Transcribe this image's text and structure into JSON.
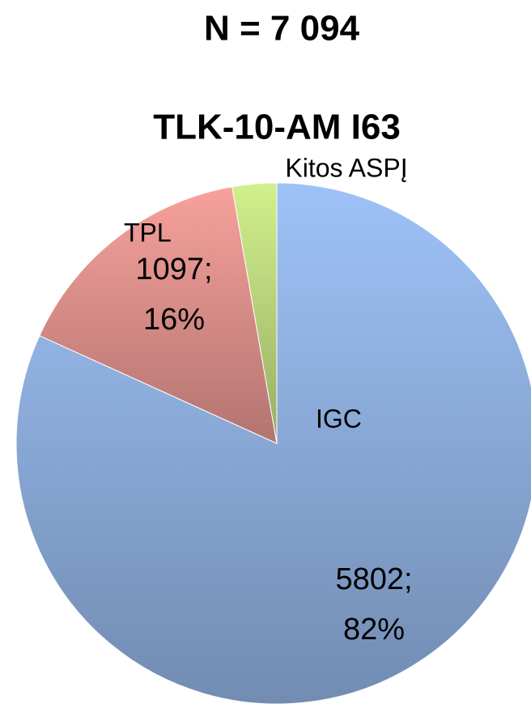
{
  "chart_data": {
    "type": "pie",
    "title": "N = 7 094",
    "subtitle": "TLK-10-AM  I63",
    "categories": [
      "IGC",
      "TPL",
      "Kitos ASPĮ"
    ],
    "values": [
      5802,
      1097,
      195
    ],
    "value_labels": [
      "5802;\n82%",
      "1097;\n16%",
      null
    ],
    "colors": [
      "#9ec2f7",
      "#f7a19c",
      "#d2f08c"
    ]
  }
}
